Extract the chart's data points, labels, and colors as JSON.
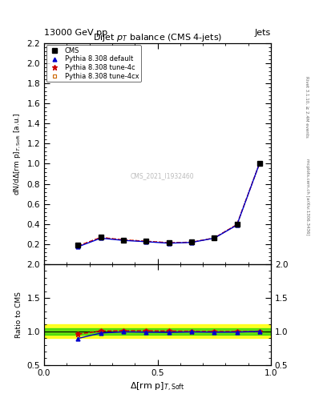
{
  "title": "Dijet $p_T$ balance (CMS 4-jets)",
  "header_left": "13000 GeV pp",
  "header_right": "Jets",
  "watermark": "CMS_2021_I1932460",
  "right_label_top": "Rivet 3.1.10, ≥ 2.4M events",
  "right_label_bottom": "mcplots.cern.ch [arXiv:1306.3436]",
  "xlabel": "$\\Delta${rm p}$_{T,\\rm Soft}$",
  "ylabel_main": "dN/d$\\Delta${rm p}$_{T,\\rm Soft}$ [a.u.]",
  "ylabel_ratio": "Ratio to CMS",
  "xdata": [
    0.15,
    0.25,
    0.35,
    0.45,
    0.55,
    0.65,
    0.75,
    0.85,
    0.95
  ],
  "cms_y": [
    0.19,
    0.27,
    0.24,
    0.23,
    0.215,
    0.22,
    0.265,
    0.395,
    1.005
  ],
  "pythia_default_y": [
    0.175,
    0.26,
    0.238,
    0.225,
    0.21,
    0.218,
    0.26,
    0.39,
    1.005
  ],
  "pythia_4c_y": [
    0.183,
    0.268,
    0.243,
    0.23,
    0.215,
    0.22,
    0.262,
    0.395,
    1.005
  ],
  "pythia_4cx_y": [
    0.183,
    0.268,
    0.243,
    0.23,
    0.215,
    0.22,
    0.262,
    0.395,
    1.005
  ],
  "ratio_default_y": [
    0.895,
    0.975,
    0.993,
    0.988,
    0.985,
    0.992,
    0.988,
    0.989,
    1.0
  ],
  "ratio_4c_y": [
    0.96,
    1.005,
    1.01,
    1.01,
    1.005,
    1.002,
    0.998,
    0.998,
    1.0
  ],
  "ratio_4cx_y": [
    0.96,
    1.005,
    1.01,
    1.01,
    1.005,
    1.002,
    0.998,
    0.998,
    1.0
  ],
  "cms_color": "#000000",
  "default_color": "#0000cc",
  "tune4c_color": "#cc0000",
  "tune4cx_color": "#cc6600",
  "green_band": [
    0.95,
    1.05
  ],
  "yellow_band": [
    0.9,
    1.1
  ],
  "ylim_main": [
    0.0,
    2.2
  ],
  "ylim_ratio": [
    0.5,
    2.0
  ],
  "xlim": [
    0.0,
    1.0
  ],
  "yticks_main": [
    0.2,
    0.4,
    0.6,
    0.8,
    1.0,
    1.2,
    1.4,
    1.6,
    1.8,
    2.0,
    2.2
  ],
  "yticks_ratio": [
    0.5,
    1.0,
    1.5,
    2.0
  ],
  "xticks_main": [
    0.0,
    0.5,
    1.0
  ],
  "xticks_ratio": [
    0.0,
    0.5,
    1.0
  ]
}
